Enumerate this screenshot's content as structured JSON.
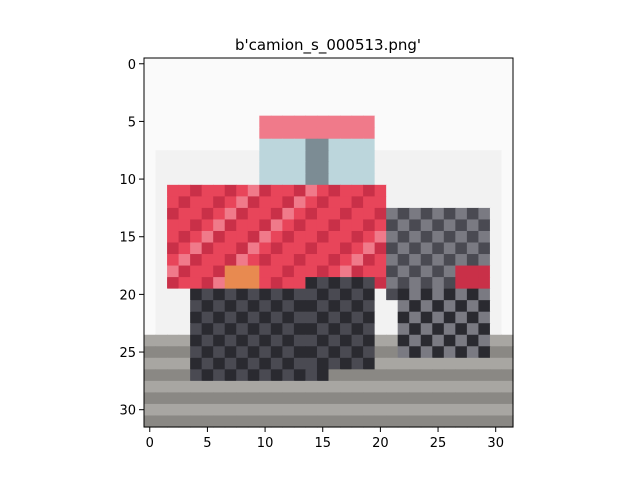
{
  "figure": {
    "title": "b'camion_s_000513.png'"
  },
  "image": {
    "subject": "low-resolution 32x32 photo of a red pickup truck with large black tires",
    "grid_size": [
      32,
      32
    ],
    "palette": {
      "background": "#f2f2f2",
      "sky": "#fafafa",
      "truck_red": "#e8455a",
      "truck_red_dark": "#c93048",
      "truck_red_light": "#f07a8a",
      "window_blue": "#bcd6dc",
      "window_dark": "#7c8c94",
      "tire_black": "#2a2a30",
      "tire_gray": "#4a4a52",
      "chrome": "#7a7a82",
      "ground": "#a8a6a2",
      "ground_dark": "#8a8884",
      "orange_light": "#e88a50"
    }
  },
  "axes": {
    "x_ticks": [
      "0",
      "5",
      "10",
      "15",
      "20",
      "25",
      "30"
    ],
    "y_ticks": [
      "0",
      "5",
      "10",
      "15",
      "20",
      "25",
      "30"
    ],
    "xlim": [
      -0.5,
      31.5
    ],
    "ylim": [
      31.5,
      -0.5
    ]
  }
}
